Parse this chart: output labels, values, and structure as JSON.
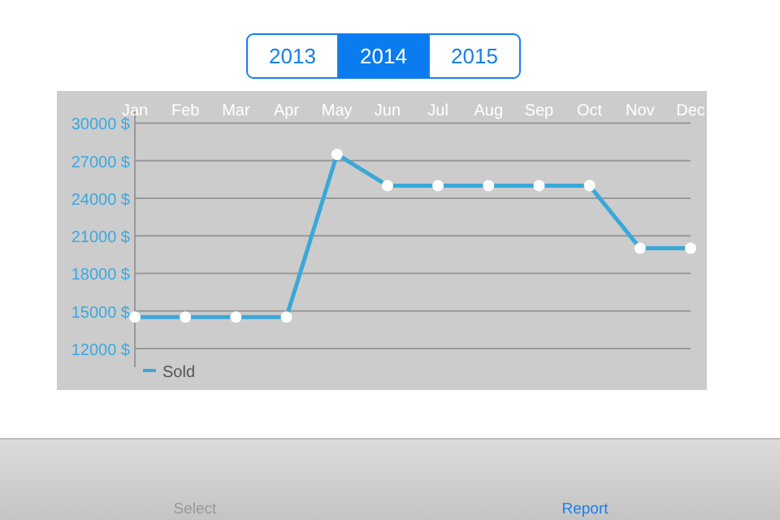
{
  "chart_data": {
    "type": "line",
    "categories": [
      "Jan",
      "Feb",
      "Mar",
      "Apr",
      "May",
      "Jun",
      "Jul",
      "Aug",
      "Sep",
      "Oct",
      "Nov",
      "Dec"
    ],
    "series": [
      {
        "name": "Sold",
        "color": "#3aa8d8",
        "values": [
          14500,
          14500,
          14500,
          14500,
          27500,
          25000,
          25000,
          25000,
          25000,
          25000,
          20000,
          20000
        ]
      }
    ],
    "ylim": [
      10500,
      31000
    ],
    "yticks": [
      {
        "value": 12000,
        "label": "12000 $"
      },
      {
        "value": 15000,
        "label": "15000 $"
      },
      {
        "value": 18000,
        "label": "18000 $"
      },
      {
        "value": 21000,
        "label": "21000 $"
      },
      {
        "value": 24000,
        "label": "24000 $"
      },
      {
        "value": 27000,
        "label": "27000 $"
      },
      {
        "value": 30000,
        "label": "30000 $"
      }
    ],
    "grid": "y",
    "legend": "bottom left",
    "marker": "circle",
    "line_style": "solid",
    "annotations": [
      "2013",
      "2014",
      "2015",
      "Select",
      "Report"
    ]
  }
}
